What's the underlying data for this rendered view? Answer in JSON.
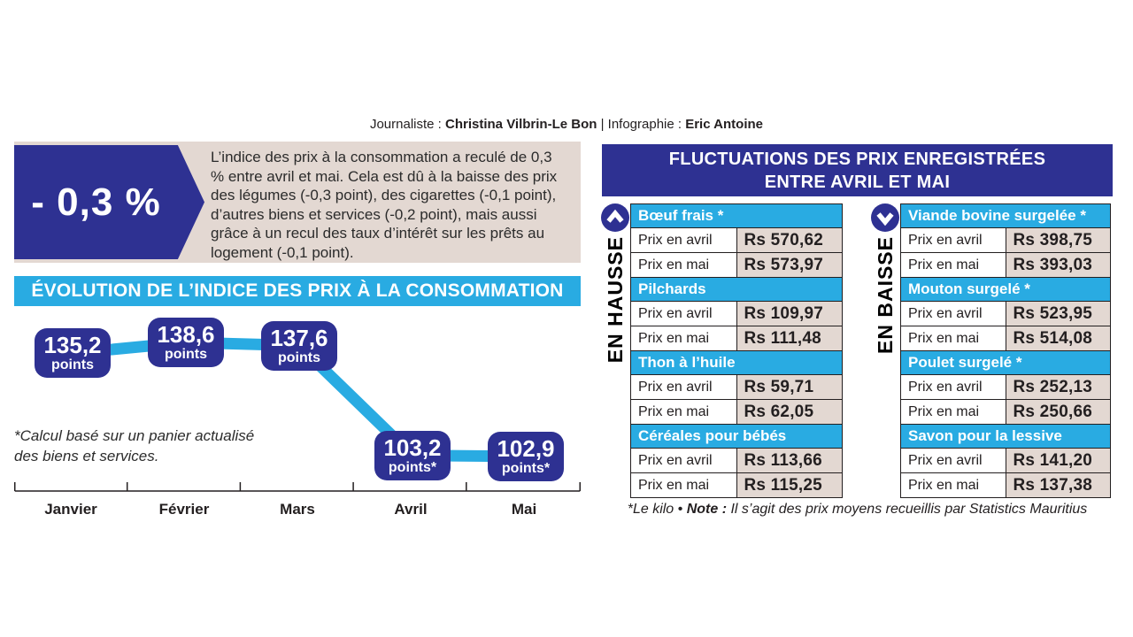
{
  "byline": {
    "label_journalist": "Journaliste : ",
    "journalist": "Christina Vilbrin-Le Bon",
    "separator": " | ",
    "label_infographic": "Infographie : ",
    "infographic": "Eric Antoine"
  },
  "intro": {
    "badge": "- 0,3 %",
    "text": "L’indice des prix à la consommation a reculé de 0,3 % entre avril et mai. Cela est dû à la baisse des prix des légumes (-0,3 point), des cigarettes (-0,1 point), d’autres biens et services (-0,2 point), mais aussi grâce à un recul des taux d’intérêt sur les prêts au logement (-0,1 point)."
  },
  "chart_data": {
    "type": "line",
    "title": "ÉVOLUTION DE L’INDICE DES PRIX À LA CONSOMMATION",
    "x": [
      "Janvier",
      "Février",
      "Mars",
      "Avril",
      "Mai"
    ],
    "values": [
      135.2,
      138.6,
      137.6,
      103.2,
      102.9
    ],
    "point_labels": [
      "135,2",
      "138,6",
      "137,6",
      "103,2",
      "102,9"
    ],
    "unit_labels": [
      "points",
      "points",
      "points",
      "points*",
      "points*"
    ],
    "ylim": [
      100,
      142
    ],
    "footnote_line1": "*Calcul basé sur un panier actualisé",
    "footnote_line2": "des biens et services.",
    "line_color": "#29ABE2",
    "badge_color": "#2E3192",
    "axis_color": "#231F20"
  },
  "fluctuations": {
    "title_line1": "FLUCTUATIONS DES PRIX ENREGISTRÉES",
    "title_line2": "ENTRE AVRIL ET MAI",
    "row_labels": [
      "Prix en avril",
      "Prix en mai"
    ],
    "up": {
      "label": "EN HAUSSE",
      "icon": "arrow-up-icon",
      "items": [
        {
          "name": "Bœuf frais *",
          "values": [
            "Rs 570,62",
            "Rs 573,97"
          ]
        },
        {
          "name": "Pilchards",
          "values": [
            "Rs 109,97",
            "Rs 111,48"
          ]
        },
        {
          "name": "Thon à l’huile",
          "values": [
            "Rs 59,71",
            "Rs 62,05"
          ]
        },
        {
          "name": "Céréales pour bébés",
          "values": [
            "Rs 113,66",
            "Rs 115,25"
          ]
        }
      ]
    },
    "down": {
      "label": "EN BAISSE",
      "icon": "arrow-down-icon",
      "items": [
        {
          "name": "Viande bovine surgelée *",
          "values": [
            "Rs 398,75",
            "Rs 393,03"
          ]
        },
        {
          "name": "Mouton surgelé *",
          "values": [
            "Rs 523,95",
            "Rs 514,08"
          ]
        },
        {
          "name": "Poulet surgelé *",
          "values": [
            "Rs 252,13",
            "Rs 250,66"
          ]
        },
        {
          "name": "Savon pour la lessive",
          "values": [
            "Rs 141,20",
            "Rs 137,38"
          ]
        }
      ]
    },
    "note": {
      "prefix": "*Le kilo • ",
      "bold": "Note : ",
      "rest": "Il s’agit des prix moyens recueillis par Statistics Mauritius"
    }
  },
  "colors": {
    "dark_blue": "#2E3192",
    "cyan": "#29ABE2",
    "beige": "#E3D8D2",
    "text": "#231F20"
  }
}
